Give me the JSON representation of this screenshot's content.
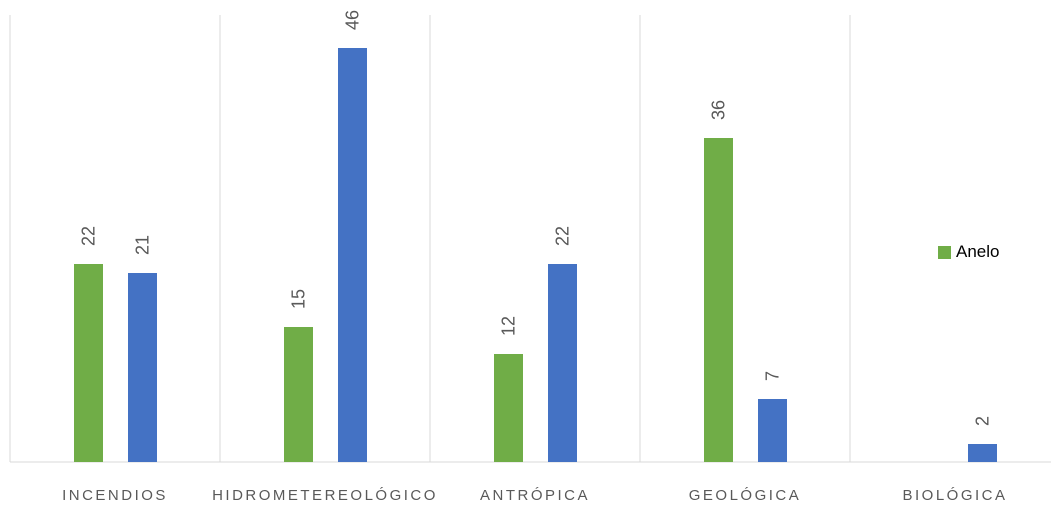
{
  "chart_data": {
    "type": "bar",
    "categories": [
      "INCENDIOS",
      "HIDROMETEREOLÓGICO",
      "ANTRÓPICA",
      "GEOLÓGICA",
      "BIOLÓGICA"
    ],
    "series": [
      {
        "name": "Anelo",
        "values": [
          22,
          15,
          12,
          36,
          null
        ],
        "color": "#70ad47"
      },
      {
        "values": [
          21,
          46,
          22,
          7,
          2
        ],
        "color": "#4472c4"
      }
    ],
    "title": "",
    "xlabel": "",
    "ylabel": "",
    "ylim": [
      0,
      50
    ],
    "grid": "vertical category separators",
    "legend": "right",
    "data_labels": true
  }
}
